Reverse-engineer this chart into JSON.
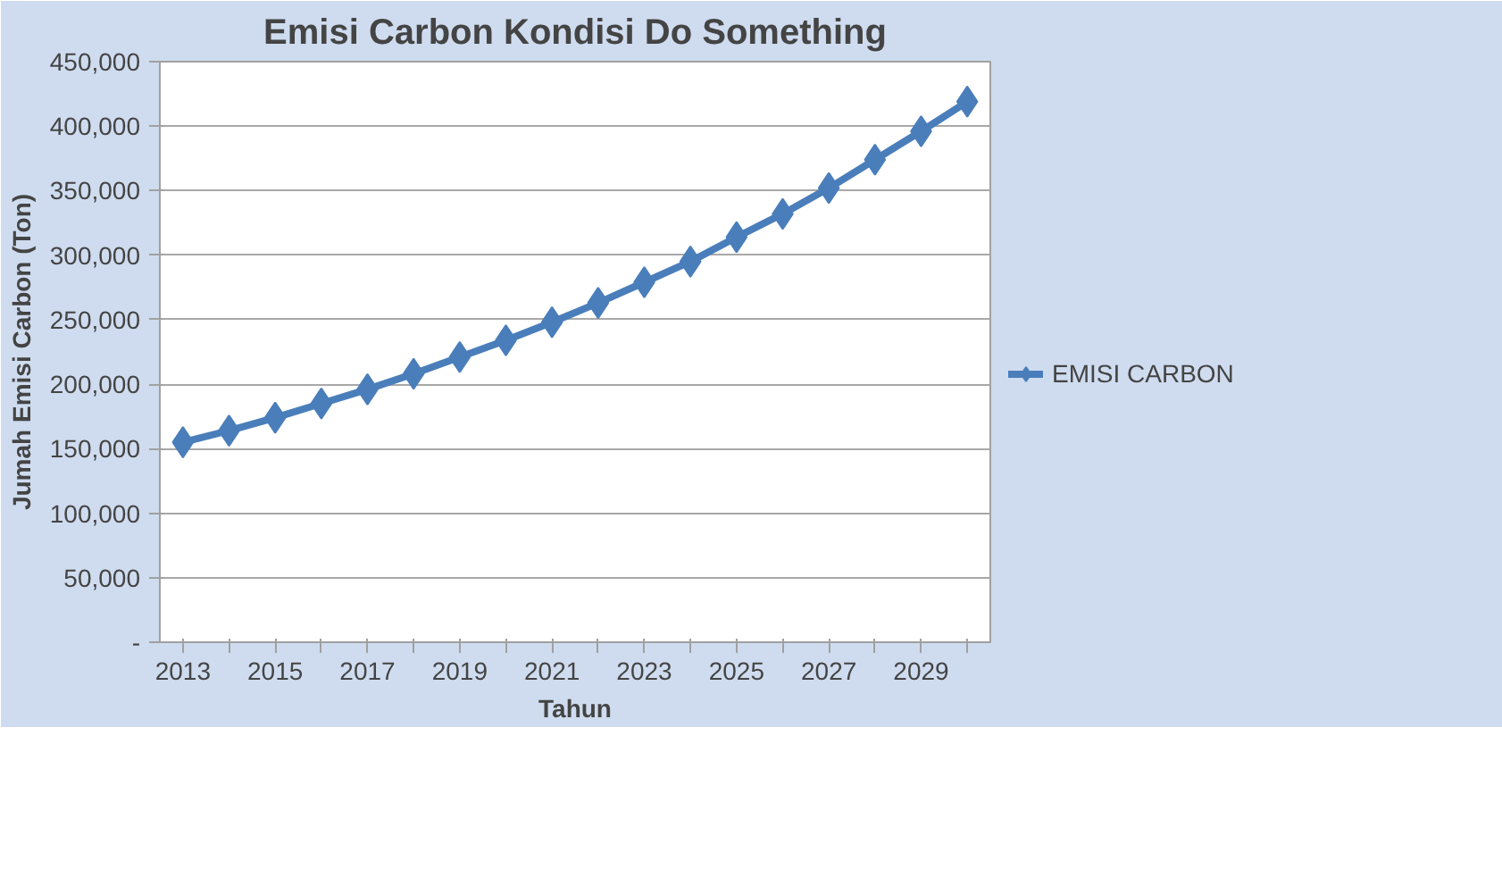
{
  "chart_data": {
    "type": "line",
    "title": "Emisi Carbon Kondisi Do Something",
    "xlabel": "Tahun",
    "ylabel": "Jumah Emisi Carbon (Ton)",
    "categories": [
      "2013",
      null,
      "2015",
      null,
      "2017",
      null,
      "2019",
      null,
      "2021",
      null,
      "2023",
      null,
      "2025",
      null,
      "2027",
      null,
      "2029",
      null
    ],
    "series": [
      {
        "name": "EMISI CARBON",
        "color": "#4a7ebb",
        "values": [
          155000,
          164000,
          174000,
          185000,
          196000,
          208000,
          221000,
          234000,
          248000,
          263000,
          279000,
          295000,
          314000,
          332000,
          352000,
          374000,
          396000,
          419000
        ]
      }
    ],
    "ylim": [
      0,
      450000
    ],
    "yticks": [
      {
        "value": 0,
        "label": "-"
      },
      {
        "value": 50000,
        "label": "50,000"
      },
      {
        "value": 100000,
        "label": "100,000"
      },
      {
        "value": 150000,
        "label": "150,000"
      },
      {
        "value": 200000,
        "label": "200,000"
      },
      {
        "value": 250000,
        "label": "250,000"
      },
      {
        "value": 300000,
        "label": "300,000"
      },
      {
        "value": 350000,
        "label": "350,000"
      },
      {
        "value": 400000,
        "label": "400,000"
      },
      {
        "value": 450000,
        "label": "450,000"
      }
    ],
    "grid": "y",
    "legend": "right",
    "marker": "diamond",
    "line_style": "solid"
  }
}
